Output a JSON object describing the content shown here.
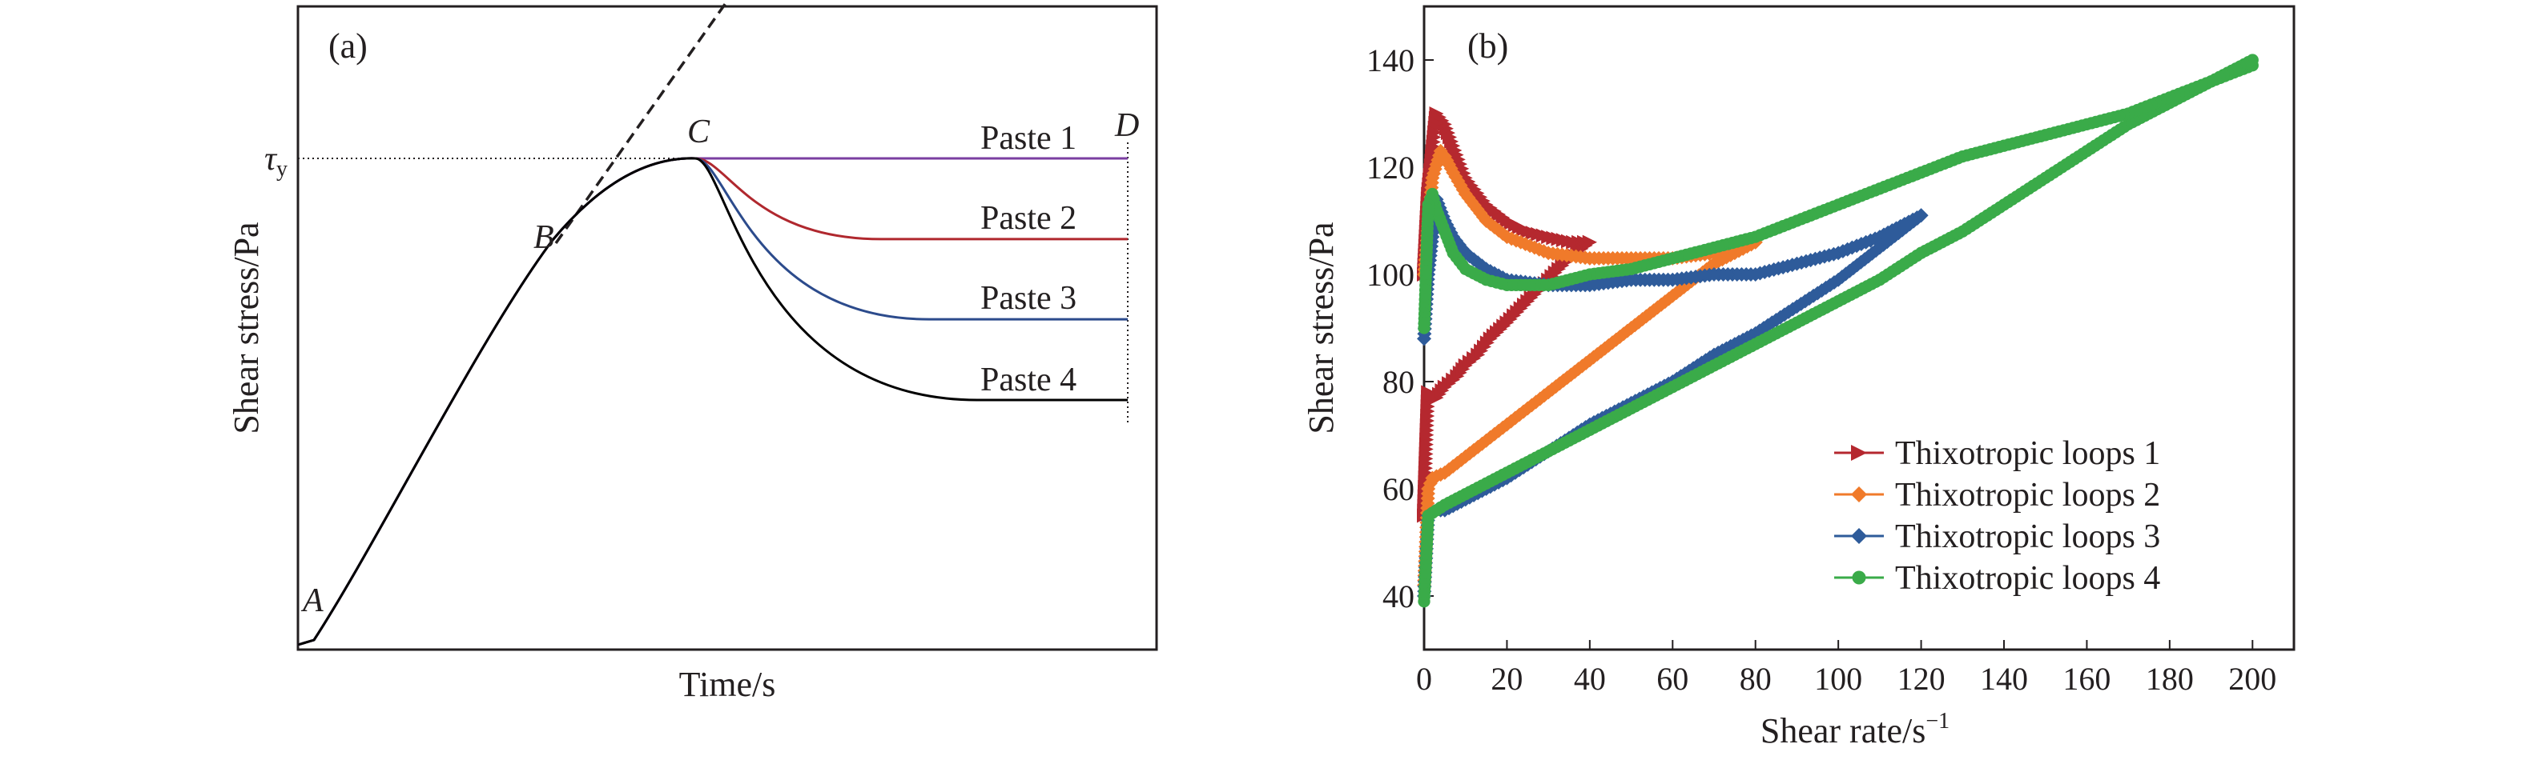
{
  "chart_data": [
    {
      "panel": "(a)",
      "type": "line",
      "xlabel": "Time/s",
      "ylabel": "Shear stress/Pa",
      "x_ticks": false,
      "y_ticks": false,
      "yield_stress_label": "τ",
      "yield_stress_subscript": "y",
      "point_labels": [
        "A",
        "B",
        "C",
        "D"
      ],
      "series": [
        {
          "name": "Paste 1",
          "color": "#7a3ea1",
          "final_level": 0.0
        },
        {
          "name": "Paste 2",
          "color": "#b0282e",
          "final_level": 0.167
        },
        {
          "name": "Paste 3",
          "color": "#2c4b8c",
          "final_level": 0.333
        },
        {
          "name": "Paste 4",
          "color": "#000000",
          "final_level": 0.5
        }
      ]
    },
    {
      "panel": "(b)",
      "type": "scatter",
      "xlabel": "Shear rate/s",
      "xlabel_superscript": "−1",
      "ylabel": "Shear stress/Pa",
      "xlim": [
        0,
        210
      ],
      "ylim": [
        30,
        150
      ],
      "x_ticks": [
        0,
        20,
        40,
        60,
        80,
        100,
        120,
        140,
        160,
        180,
        200
      ],
      "y_ticks": [
        40,
        60,
        80,
        100,
        120,
        140
      ],
      "legend_position": "bottom-right",
      "series": [
        {
          "name": "Thixotropic loops 1",
          "color": "#b5282f",
          "marker": "triangle-right",
          "up": [
            [
              0,
              55
            ],
            [
              1,
              78
            ],
            [
              3,
              77
            ],
            [
              5,
              79
            ],
            [
              8,
              81
            ],
            [
              10,
              83
            ],
            [
              13,
              85
            ],
            [
              16,
              88
            ],
            [
              20,
              91
            ],
            [
              25,
              95
            ],
            [
              30,
              99
            ],
            [
              35,
              103
            ],
            [
              40,
              106
            ]
          ],
          "down": [
            [
              40,
              106
            ],
            [
              36,
              106
            ],
            [
              30,
              107
            ],
            [
              25,
              108
            ],
            [
              20,
              110
            ],
            [
              15,
              113
            ],
            [
              10,
              118
            ],
            [
              7,
              124
            ],
            [
              5,
              128
            ],
            [
              3,
              130
            ],
            [
              1,
              115
            ],
            [
              0,
              100
            ]
          ]
        },
        {
          "name": "Thixotropic loops 2",
          "color": "#f07a2a",
          "marker": "diamond",
          "up": [
            [
              0,
              42
            ],
            [
              1,
              60
            ],
            [
              2,
              62
            ],
            [
              5,
              63
            ],
            [
              10,
              66
            ],
            [
              15,
              69
            ],
            [
              20,
              72
            ],
            [
              25,
              75
            ],
            [
              30,
              78
            ],
            [
              40,
              84
            ],
            [
              50,
              90
            ],
            [
              60,
              96
            ],
            [
              70,
              102
            ],
            [
              80,
              106
            ]
          ],
          "down": [
            [
              80,
              106
            ],
            [
              70,
              104
            ],
            [
              60,
              103
            ],
            [
              50,
              103
            ],
            [
              40,
              103
            ],
            [
              30,
              104
            ],
            [
              20,
              107
            ],
            [
              15,
              110
            ],
            [
              10,
              115
            ],
            [
              7,
              119
            ],
            [
              5,
              122
            ],
            [
              4,
              123
            ],
            [
              2,
              118
            ],
            [
              0,
              100
            ]
          ]
        },
        {
          "name": "Thixotropic loops 3",
          "color": "#2e5b9a",
          "marker": "diamond",
          "up": [
            [
              0,
              40
            ],
            [
              1,
              55
            ],
            [
              3,
              56
            ],
            [
              5,
              56
            ],
            [
              10,
              58
            ],
            [
              20,
              62
            ],
            [
              30,
              67
            ],
            [
              40,
              72
            ],
            [
              50,
              76
            ],
            [
              60,
              80
            ],
            [
              70,
              85
            ],
            [
              80,
              89
            ],
            [
              90,
              94
            ],
            [
              100,
              99
            ],
            [
              110,
              105
            ],
            [
              120,
              111
            ]
          ],
          "down": [
            [
              120,
              111
            ],
            [
              110,
              107
            ],
            [
              100,
              104
            ],
            [
              90,
              102
            ],
            [
              80,
              100
            ],
            [
              70,
              100
            ],
            [
              60,
              99
            ],
            [
              50,
              99
            ],
            [
              40,
              98
            ],
            [
              30,
              98
            ],
            [
              20,
              99
            ],
            [
              15,
              101
            ],
            [
              10,
              104
            ],
            [
              7,
              107
            ],
            [
              5,
              110
            ],
            [
              3,
              114
            ],
            [
              1,
              100
            ],
            [
              0,
              88
            ]
          ]
        },
        {
          "name": "Thixotropic loops 4",
          "color": "#3aab49",
          "marker": "circle",
          "up": [
            [
              0,
              39
            ],
            [
              1,
              55
            ],
            [
              3,
              56
            ],
            [
              5,
              57
            ],
            [
              10,
              59
            ],
            [
              20,
              63
            ],
            [
              30,
              67
            ],
            [
              40,
              71
            ],
            [
              50,
              75
            ],
            [
              60,
              79
            ],
            [
              70,
              83
            ],
            [
              80,
              87
            ],
            [
              90,
              91
            ],
            [
              100,
              95
            ],
            [
              110,
              99
            ],
            [
              120,
              104
            ],
            [
              130,
              108
            ],
            [
              140,
              113
            ],
            [
              150,
              118
            ],
            [
              160,
              123
            ],
            [
              170,
              128
            ],
            [
              180,
              132
            ],
            [
              190,
              136
            ],
            [
              200,
              139
            ]
          ],
          "down": [
            [
              200,
              140
            ],
            [
              190,
              136
            ],
            [
              180,
              133
            ],
            [
              170,
              130
            ],
            [
              160,
              128
            ],
            [
              150,
              126
            ],
            [
              140,
              124
            ],
            [
              130,
              122
            ],
            [
              120,
              119
            ],
            [
              110,
              116
            ],
            [
              100,
              113
            ],
            [
              90,
              110
            ],
            [
              80,
              107
            ],
            [
              70,
              105
            ],
            [
              60,
              103
            ],
            [
              50,
              101
            ],
            [
              40,
              100
            ],
            [
              30,
              98
            ],
            [
              20,
              98
            ],
            [
              15,
              99
            ],
            [
              10,
              101
            ],
            [
              7,
              104
            ],
            [
              5,
              108
            ],
            [
              3,
              112
            ],
            [
              2,
              115
            ],
            [
              1,
              113
            ],
            [
              0,
              90
            ]
          ]
        }
      ]
    }
  ]
}
